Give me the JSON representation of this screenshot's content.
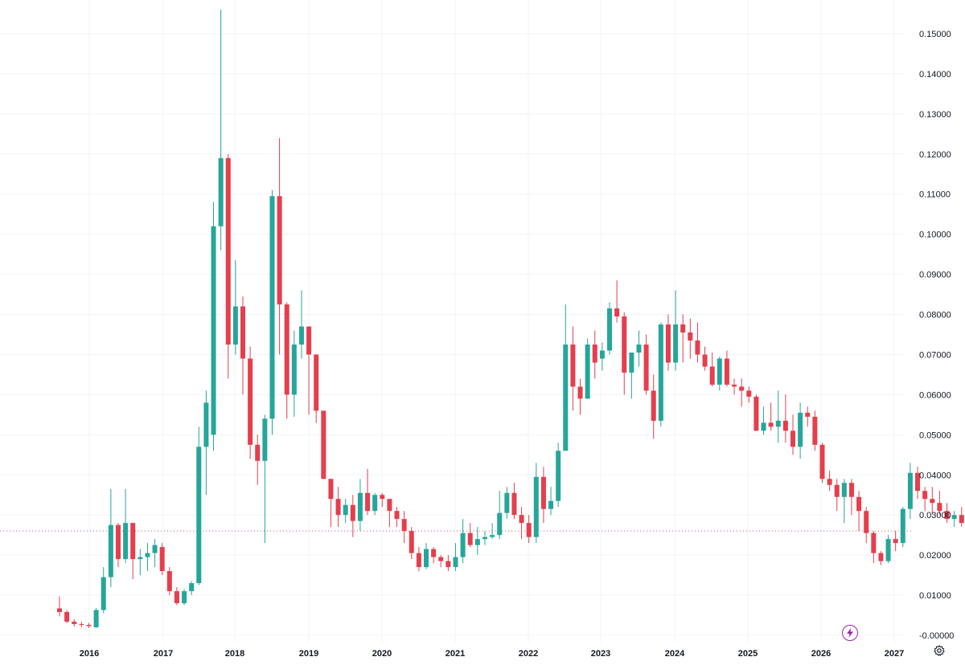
{
  "colors": {
    "up": "#26a69a",
    "down": "#e53e4d",
    "grid": "#f0f3fa",
    "text": "#131722",
    "last_price_line": "#e0535f",
    "accent": "#9c27b0"
  },
  "icons": {
    "replay": "lightning-bolt-icon",
    "settings": "gear-icon"
  },
  "chart_data": {
    "type": "candlestick",
    "interval": "monthly",
    "start": "2015-08",
    "y_axis_side": "right",
    "ylim": [
      -0.004,
      0.158
    ],
    "y_ticks": [
      "-0.00000",
      "0.01000",
      "0.02000",
      "0.03000",
      "0.04000",
      "0.05000",
      "0.06000",
      "0.07000",
      "0.08000",
      "0.09000",
      "0.10000",
      "0.11000",
      "0.12000",
      "0.13000",
      "0.14000",
      "0.15000"
    ],
    "x_ticks": [
      "2016",
      "2017",
      "2018",
      "2019",
      "2020",
      "2021",
      "2022",
      "2023",
      "2024",
      "2025",
      "2026",
      "2027"
    ],
    "grid": true,
    "last_price": 0.026,
    "ohlc": [
      [
        0.0067,
        0.0097,
        0.0047,
        0.0058
      ],
      [
        0.0058,
        0.0063,
        0.003,
        0.0034
      ],
      [
        0.0034,
        0.004,
        0.0022,
        0.0028
      ],
      [
        0.0028,
        0.0034,
        0.002,
        0.0026
      ],
      [
        0.0026,
        0.0031,
        0.0018,
        0.0023
      ],
      [
        0.002,
        0.0068,
        0.0018,
        0.0063
      ],
      [
        0.0063,
        0.017,
        0.0055,
        0.0145
      ],
      [
        0.0145,
        0.0365,
        0.012,
        0.0275
      ],
      [
        0.0275,
        0.028,
        0.017,
        0.019
      ],
      [
        0.019,
        0.0365,
        0.018,
        0.028
      ],
      [
        0.028,
        0.028,
        0.014,
        0.019
      ],
      [
        0.019,
        0.0215,
        0.015,
        0.0195
      ],
      [
        0.0195,
        0.023,
        0.016,
        0.0205
      ],
      [
        0.0205,
        0.024,
        0.017,
        0.0225
      ],
      [
        0.022,
        0.023,
        0.015,
        0.016
      ],
      [
        0.016,
        0.017,
        0.01,
        0.011
      ],
      [
        0.011,
        0.012,
        0.0075,
        0.008
      ],
      [
        0.008,
        0.0115,
        0.0075,
        0.011
      ],
      [
        0.011,
        0.0135,
        0.01,
        0.013
      ],
      [
        0.013,
        0.052,
        0.0125,
        0.047
      ],
      [
        0.047,
        0.061,
        0.035,
        0.058
      ],
      [
        0.05,
        0.108,
        0.046,
        0.102
      ],
      [
        0.102,
        0.156,
        0.096,
        0.119
      ],
      [
        0.119,
        0.12,
        0.064,
        0.0725
      ],
      [
        0.0725,
        0.0935,
        0.07,
        0.082
      ],
      [
        0.082,
        0.0845,
        0.06,
        0.069
      ],
      [
        0.069,
        0.072,
        0.044,
        0.0475
      ],
      [
        0.0475,
        0.05,
        0.0375,
        0.0435
      ],
      [
        0.0435,
        0.055,
        0.023,
        0.054
      ],
      [
        0.054,
        0.111,
        0.05,
        0.1095
      ],
      [
        0.1095,
        0.124,
        0.07,
        0.0825
      ],
      [
        0.0825,
        0.083,
        0.054,
        0.06
      ],
      [
        0.06,
        0.076,
        0.0545,
        0.0725
      ],
      [
        0.0725,
        0.086,
        0.069,
        0.077
      ],
      [
        0.077,
        0.077,
        0.055,
        0.07
      ],
      [
        0.07,
        0.07,
        0.053,
        0.056
      ],
      [
        0.056,
        0.056,
        0.039,
        0.039
      ],
      [
        0.039,
        0.039,
        0.027,
        0.034
      ],
      [
        0.034,
        0.037,
        0.027,
        0.03
      ],
      [
        0.03,
        0.034,
        0.028,
        0.0325
      ],
      [
        0.0325,
        0.035,
        0.0245,
        0.0285
      ],
      [
        0.0285,
        0.039,
        0.026,
        0.0355
      ],
      [
        0.0355,
        0.0415,
        0.03,
        0.031
      ],
      [
        0.031,
        0.0355,
        0.03,
        0.035
      ],
      [
        0.035,
        0.0355,
        0.032,
        0.034
      ],
      [
        0.034,
        0.034,
        0.027,
        0.031
      ],
      [
        0.031,
        0.032,
        0.027,
        0.029
      ],
      [
        0.029,
        0.031,
        0.023,
        0.026
      ],
      [
        0.026,
        0.027,
        0.019,
        0.0205
      ],
      [
        0.0205,
        0.022,
        0.016,
        0.017
      ],
      [
        0.017,
        0.023,
        0.0165,
        0.0215
      ],
      [
        0.0215,
        0.022,
        0.018,
        0.0195
      ],
      [
        0.0195,
        0.02,
        0.017,
        0.0185
      ],
      [
        0.0185,
        0.02,
        0.016,
        0.017
      ],
      [
        0.017,
        0.023,
        0.016,
        0.0195
      ],
      [
        0.0195,
        0.029,
        0.018,
        0.0255
      ],
      [
        0.0255,
        0.028,
        0.022,
        0.0225
      ],
      [
        0.0225,
        0.027,
        0.02,
        0.024
      ],
      [
        0.024,
        0.026,
        0.0225,
        0.0245
      ],
      [
        0.0245,
        0.028,
        0.024,
        0.025
      ],
      [
        0.025,
        0.036,
        0.024,
        0.0305
      ],
      [
        0.0305,
        0.037,
        0.029,
        0.0355
      ],
      [
        0.0355,
        0.038,
        0.029,
        0.03
      ],
      [
        0.03,
        0.032,
        0.024,
        0.028
      ],
      [
        0.028,
        0.03,
        0.023,
        0.0245
      ],
      [
        0.0245,
        0.043,
        0.023,
        0.0395
      ],
      [
        0.0395,
        0.042,
        0.028,
        0.0315
      ],
      [
        0.0315,
        0.037,
        0.03,
        0.0335
      ],
      [
        0.0335,
        0.048,
        0.032,
        0.046
      ],
      [
        0.046,
        0.0825,
        0.046,
        0.0725
      ],
      [
        0.0725,
        0.077,
        0.056,
        0.062
      ],
      [
        0.062,
        0.064,
        0.055,
        0.059
      ],
      [
        0.059,
        0.074,
        0.059,
        0.0725
      ],
      [
        0.0725,
        0.076,
        0.064,
        0.068
      ],
      [
        0.069,
        0.073,
        0.066,
        0.071
      ],
      [
        0.071,
        0.083,
        0.07,
        0.0815
      ],
      [
        0.0815,
        0.0885,
        0.078,
        0.0795
      ],
      [
        0.0795,
        0.0805,
        0.06,
        0.0655
      ],
      [
        0.0655,
        0.07,
        0.059,
        0.0705
      ],
      [
        0.0705,
        0.076,
        0.067,
        0.0725
      ],
      [
        0.0725,
        0.075,
        0.06,
        0.061
      ],
      [
        0.061,
        0.065,
        0.049,
        0.0535
      ],
      [
        0.0535,
        0.078,
        0.052,
        0.0775
      ],
      [
        0.0775,
        0.08,
        0.066,
        0.068
      ],
      [
        0.068,
        0.086,
        0.066,
        0.0775
      ],
      [
        0.0775,
        0.08,
        0.068,
        0.0755
      ],
      [
        0.0755,
        0.079,
        0.069,
        0.0735
      ],
      [
        0.0735,
        0.078,
        0.068,
        0.07
      ],
      [
        0.07,
        0.072,
        0.066,
        0.067
      ],
      [
        0.067,
        0.0705,
        0.062,
        0.0625
      ],
      [
        0.0625,
        0.0695,
        0.061,
        0.069
      ],
      [
        0.069,
        0.071,
        0.062,
        0.0625
      ],
      [
        0.0625,
        0.064,
        0.06,
        0.062
      ],
      [
        0.062,
        0.064,
        0.057,
        0.061
      ],
      [
        0.061,
        0.062,
        0.058,
        0.0595
      ],
      [
        0.0595,
        0.06,
        0.051,
        0.051
      ],
      [
        0.051,
        0.057,
        0.05,
        0.053
      ],
      [
        0.053,
        0.058,
        0.051,
        0.052
      ],
      [
        0.052,
        0.061,
        0.048,
        0.0535
      ],
      [
        0.0535,
        0.06,
        0.048,
        0.051
      ],
      [
        0.051,
        0.055,
        0.045,
        0.047
      ],
      [
        0.047,
        0.058,
        0.044,
        0.0555
      ],
      [
        0.0555,
        0.057,
        0.052,
        0.0545
      ],
      [
        0.0545,
        0.056,
        0.046,
        0.0475
      ],
      [
        0.0475,
        0.048,
        0.038,
        0.039
      ],
      [
        0.039,
        0.041,
        0.036,
        0.0375
      ],
      [
        0.0375,
        0.039,
        0.031,
        0.0345
      ],
      [
        0.0345,
        0.039,
        0.028,
        0.038
      ],
      [
        0.038,
        0.039,
        0.03,
        0.0345
      ],
      [
        0.0345,
        0.036,
        0.026,
        0.031
      ],
      [
        0.031,
        0.032,
        0.023,
        0.0255
      ],
      [
        0.0255,
        0.026,
        0.018,
        0.0205
      ],
      [
        0.0205,
        0.021,
        0.0175,
        0.0185
      ],
      [
        0.0185,
        0.025,
        0.018,
        0.024
      ],
      [
        0.024,
        0.026,
        0.021,
        0.023
      ],
      [
        0.023,
        0.032,
        0.022,
        0.0315
      ],
      [
        0.0315,
        0.043,
        0.029,
        0.0405
      ],
      [
        0.0405,
        0.042,
        0.034,
        0.036
      ],
      [
        0.036,
        0.037,
        0.031,
        0.034
      ],
      [
        0.034,
        0.037,
        0.03,
        0.033
      ],
      [
        0.033,
        0.036,
        0.03,
        0.031
      ],
      [
        0.031,
        0.033,
        0.028,
        0.029
      ],
      [
        0.029,
        0.031,
        0.027,
        0.03
      ],
      [
        0.03,
        0.032,
        0.027,
        0.028
      ],
      [
        0.028,
        0.029,
        0.025,
        0.026
      ]
    ]
  }
}
